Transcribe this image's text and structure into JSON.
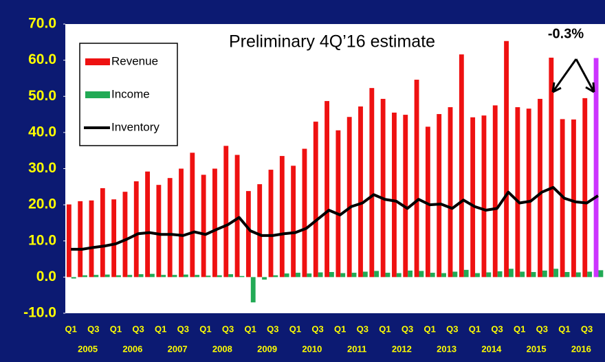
{
  "chart_data": {
    "type": "bar",
    "title": "Preliminary 4Q’16 estimate",
    "annotation": "-0.3%",
    "categories": [
      "Q1",
      null,
      "Q3",
      null,
      "Q1",
      null,
      "Q3",
      null,
      "Q1",
      null,
      "Q3",
      null,
      "Q1",
      null,
      "Q3",
      null,
      "Q1",
      null,
      "Q3",
      null,
      "Q1",
      null,
      "Q3",
      null,
      "Q1",
      null,
      "Q3",
      null,
      "Q1",
      null,
      "Q3",
      null,
      "Q1",
      null,
      "Q3",
      null,
      "Q1",
      null,
      "Q3",
      null,
      "Q1",
      null,
      "Q3",
      null,
      "Q1",
      null,
      "Q3",
      null
    ],
    "groups": [
      "2005",
      "2006",
      "2007",
      "2008",
      "2009",
      "2010",
      "2011",
      "2012",
      "2013",
      "2014",
      "2015",
      "2016"
    ],
    "series": [
      {
        "name": "Revenue",
        "color": "#ee1111",
        "type": "bar",
        "values": [
          20.1,
          21.0,
          21.2,
          24.6,
          21.5,
          23.6,
          26.5,
          29.2,
          25.5,
          27.4,
          30.0,
          34.4,
          28.3,
          30.0,
          36.3,
          33.8,
          23.8,
          25.7,
          29.7,
          33.5,
          30.8,
          35.5,
          43.0,
          48.7,
          40.6,
          44.3,
          47.2,
          52.3,
          49.3,
          45.5,
          44.9,
          54.6,
          41.6,
          45.1,
          47.0,
          61.6,
          44.2,
          44.7,
          47.5,
          65.3,
          47.0,
          46.6,
          49.3,
          60.7,
          43.7,
          43.6,
          49.5,
          60.6
        ]
      },
      {
        "name": "Income",
        "color": "#22aa55",
        "type": "bar",
        "values": [
          -0.4,
          0.5,
          0.6,
          0.7,
          0.5,
          0.6,
          0.8,
          0.9,
          0.6,
          0.6,
          0.7,
          0.6,
          0.4,
          0.5,
          0.8,
          0.3,
          -7.0,
          -0.7,
          0.5,
          1.0,
          1.2,
          1.0,
          1.3,
          1.4,
          1.1,
          1.2,
          1.5,
          1.7,
          1.2,
          1.1,
          1.8,
          1.7,
          1.2,
          1.1,
          1.5,
          2.0,
          1.1,
          1.3,
          1.6,
          2.3,
          1.5,
          1.4,
          1.8,
          2.3,
          1.4,
          1.3,
          1.5,
          1.9
        ]
      },
      {
        "name": "Inventory",
        "color": "#000000",
        "type": "line",
        "values": [
          7.7,
          7.7,
          8.2,
          8.6,
          9.2,
          10.5,
          12.0,
          12.3,
          11.8,
          11.8,
          11.5,
          12.5,
          11.8,
          13.2,
          14.5,
          16.5,
          12.8,
          11.5,
          11.5,
          12.0,
          12.3,
          13.5,
          16.0,
          18.5,
          17.2,
          19.5,
          20.5,
          22.8,
          21.5,
          21.0,
          19.0,
          21.5,
          20.0,
          20.2,
          19.0,
          21.3,
          19.5,
          18.5,
          19.0,
          23.5,
          20.5,
          21.0,
          23.5,
          24.8,
          21.8,
          20.8,
          20.5,
          22.5
        ]
      }
    ],
    "highlight": {
      "series": 0,
      "index": 47,
      "color": "#cc33ff"
    },
    "ylim": [
      -10,
      70
    ],
    "yticks": [
      {
        "value": -10,
        "label": "-10.0"
      },
      {
        "value": 0,
        "label": "0.0"
      },
      {
        "value": 10,
        "label": "10.0"
      },
      {
        "value": 20,
        "label": "20.0"
      },
      {
        "value": 30,
        "label": "30.0"
      },
      {
        "value": 40,
        "label": "40.0"
      },
      {
        "value": 50,
        "label": "50.0"
      },
      {
        "value": 60,
        "label": "60.0"
      },
      {
        "value": 70,
        "label": "70.0"
      }
    ],
    "grid": false,
    "legend": "upper left"
  }
}
